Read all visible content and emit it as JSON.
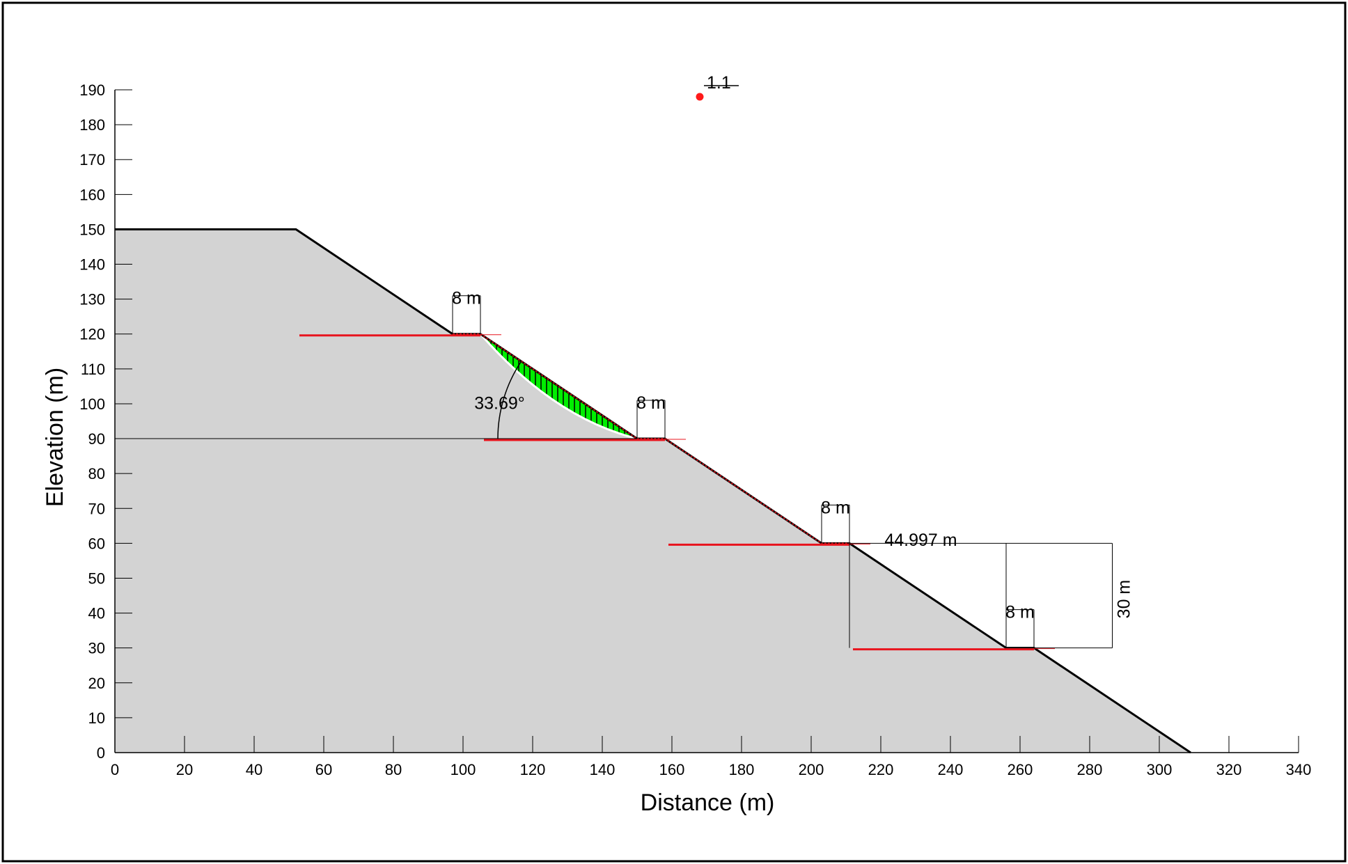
{
  "chart_data": {
    "type": "slope_stability_section",
    "xlabel": "Distance (m)",
    "ylabel": "Elevation (m)",
    "xlim": [
      0,
      340
    ],
    "ylim": [
      0,
      190
    ],
    "x_ticks": [
      0,
      20,
      40,
      60,
      80,
      100,
      120,
      140,
      160,
      180,
      200,
      220,
      240,
      260,
      280,
      300,
      320,
      340
    ],
    "y_ticks": [
      0,
      10,
      20,
      30,
      40,
      50,
      60,
      70,
      80,
      90,
      100,
      110,
      120,
      130,
      140,
      150,
      160,
      170,
      180,
      190
    ],
    "profile": [
      [
        0,
        150
      ],
      [
        52,
        150
      ],
      [
        97,
        120
      ],
      [
        105,
        120
      ],
      [
        150,
        90
      ],
      [
        158,
        90
      ],
      [
        203,
        60
      ],
      [
        211,
        60
      ],
      [
        256,
        30
      ],
      [
        264,
        30
      ],
      [
        309,
        0
      ]
    ],
    "slip_surface_entry": [
      105,
      120
    ],
    "slip_surface_exit": [
      150,
      90
    ],
    "critical_center": {
      "x": 168,
      "y": 188,
      "label": "1.1"
    },
    "benches": [
      {
        "x": [
          53,
          105
        ],
        "y": 120
      },
      {
        "x": [
          106,
          158
        ],
        "y": 90
      },
      {
        "x": [
          159,
          211
        ],
        "y": 60
      },
      {
        "x": [
          212,
          264
        ],
        "y": 30
      }
    ],
    "dimensions": {
      "bench_width_label": "8 m",
      "angle_label": "33.69°",
      "horizontal_label": "44.997 m",
      "vertical_label": "30 m"
    },
    "colors": {
      "soil": "#d3d3d3",
      "slip_mass": "#00ee00",
      "bench_line": "#e8141e",
      "center": "#ff1a1a",
      "outline": "#000000"
    }
  }
}
